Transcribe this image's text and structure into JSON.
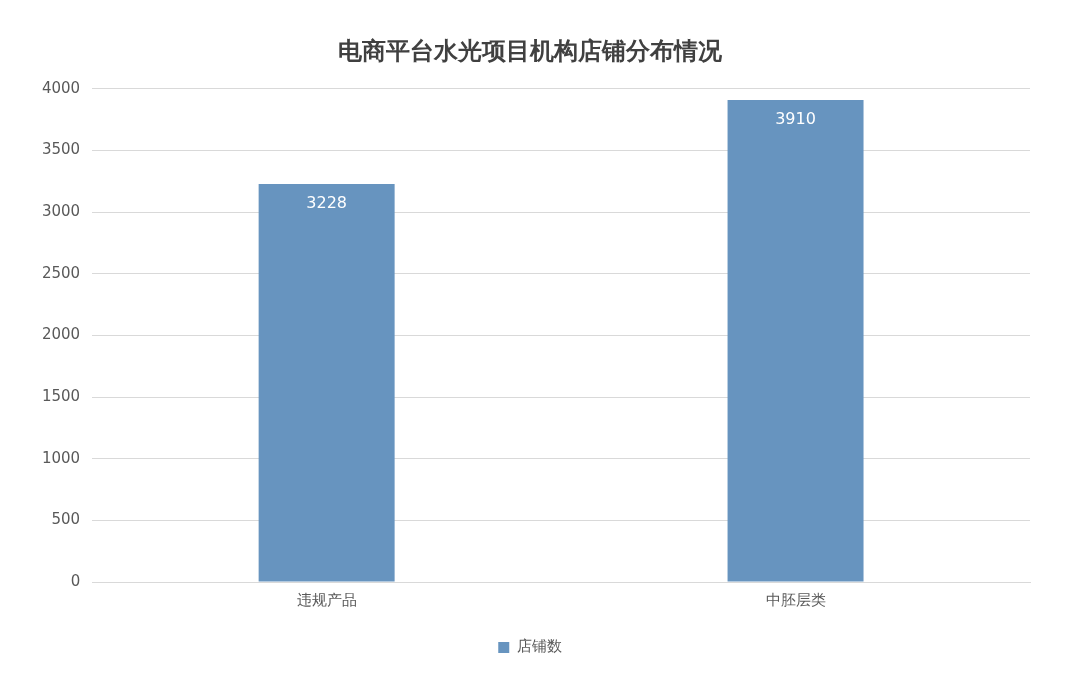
{
  "chart_data": {
    "type": "bar",
    "title": "电商平台水光项目机构店铺分布情况",
    "categories": [
      "违规产品",
      "中胚层类"
    ],
    "series": [
      {
        "name": "店铺数",
        "color": "#6794bf",
        "values": [
          3228,
          3910
        ]
      }
    ],
    "ylim": [
      0,
      4000
    ],
    "yticks": [
      0,
      500,
      1000,
      1500,
      2000,
      2500,
      3000,
      3500,
      4000
    ],
    "grid": "y",
    "legend": "bottom",
    "data_labels": true
  }
}
